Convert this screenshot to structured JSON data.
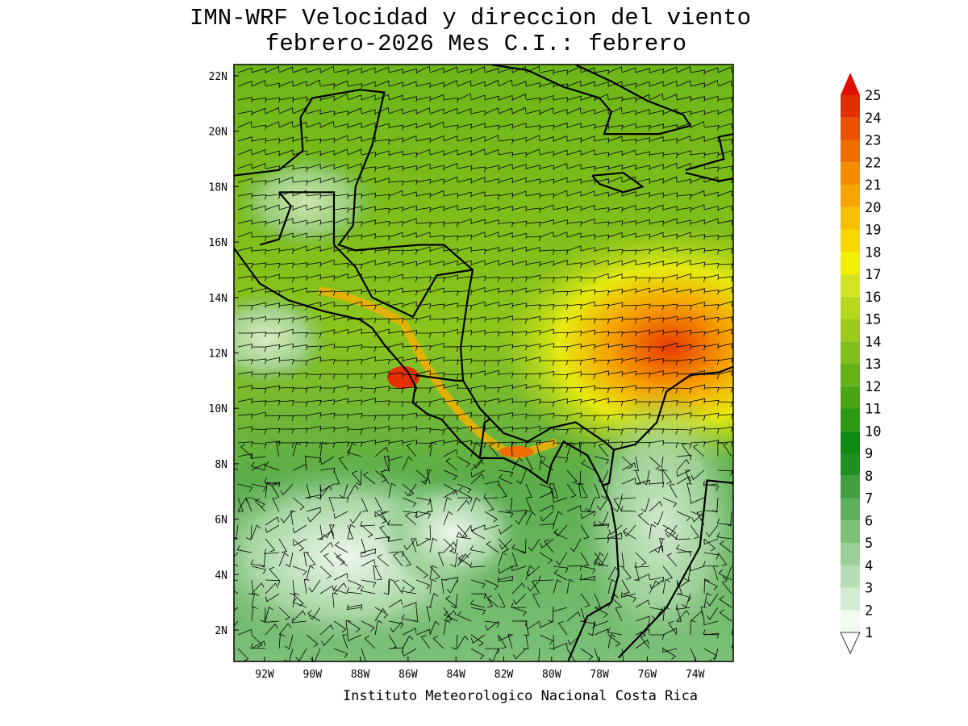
{
  "title": [
    "IMN-WRF Velocidad y direccion del viento",
    "febrero-2026 Mes C.I.: febrero"
  ],
  "map": {
    "lat_labels": [
      "22N",
      "20N",
      "18N",
      "16N",
      "14N",
      "12N",
      "10N",
      "8N",
      "6N",
      "4N",
      "2N"
    ],
    "lon_labels": [
      "92W",
      "90W",
      "88W",
      "86W",
      "84W",
      "82W",
      "80W",
      "78W",
      "76W",
      "74W"
    ]
  },
  "colorbar": {
    "levels": [
      1,
      2,
      3,
      4,
      5,
      6,
      7,
      8,
      9,
      10,
      11,
      12,
      13,
      14,
      15,
      16,
      17,
      18,
      19,
      20,
      21,
      22,
      23,
      24,
      25
    ],
    "colors": [
      "#f2f9f0",
      "#d4ecd2",
      "#b6deb4",
      "#99cf97",
      "#7cc07a",
      "#5fb05d",
      "#40a03f",
      "#228f22",
      "#0f8a10",
      "#2e9a12",
      "#4aa615",
      "#64b218",
      "#80bf1a",
      "#9ccb1c",
      "#b8d81e",
      "#d4e41f",
      "#f0f000",
      "#f8d800",
      "#f8bf00",
      "#f8a400",
      "#f68a00",
      "#f06e00",
      "#ea5000",
      "#e43000",
      "#e01000"
    ]
  },
  "footer": "Instituto Meteorologico Nacional Costa Rica"
}
